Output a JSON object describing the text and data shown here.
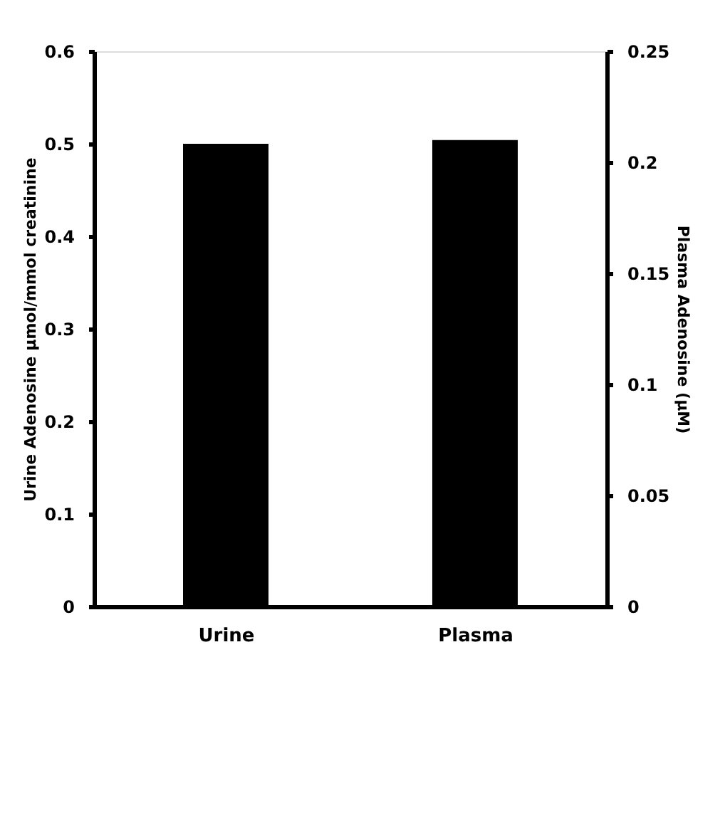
{
  "chart_data": {
    "type": "bar",
    "categories": [
      "Urine",
      "Plasma"
    ],
    "ylabel": "Urine Adenosine μmol/mmol creatinine",
    "y2label": "Plasma Adenosine (μM)",
    "ylim": [
      0,
      0.6
    ],
    "yticks": [
      0,
      0.1,
      0.2,
      0.3,
      0.4,
      0.5,
      0.6
    ],
    "y2lim": [
      0,
      0.25
    ],
    "y2ticks": [
      0,
      0.05,
      0.1,
      0.15,
      0.2,
      0.25
    ],
    "grid": false,
    "series": [
      {
        "color": "#000000",
        "values": [
          0.5,
          null
        ]
      },
      {
        "color": "#000000",
        "values": [
          null,
          0.21
        ],
        "axis": "y2"
      }
    ]
  }
}
